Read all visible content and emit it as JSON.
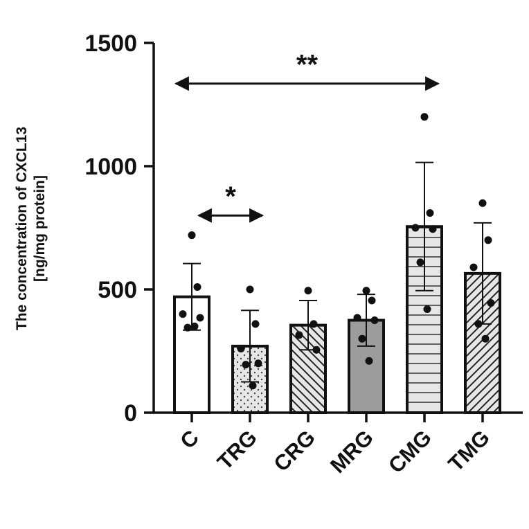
{
  "chart_data": {
    "type": "bar",
    "title": "",
    "xlabel": "",
    "ylabel_lines": [
      "The concentration of CXCL13",
      "[ng/mg protein]"
    ],
    "ylim": [
      0,
      1500
    ],
    "yticks": [
      0,
      500,
      1000,
      1500
    ],
    "ytick_labels": [
      "0",
      "500",
      "1000",
      "1500"
    ],
    "grid": false,
    "categories": [
      "C",
      "TRG",
      "CRG",
      "MRG",
      "CMG",
      "TMG"
    ],
    "means": [
      470,
      270,
      355,
      375,
      755,
      565
    ],
    "error_sd": [
      135,
      145,
      100,
      105,
      260,
      205
    ],
    "points": [
      [
        720,
        510,
        400,
        385,
        345,
        350
      ],
      [
        500,
        360,
        260,
        200,
        195,
        110
      ],
      [
        495,
        360,
        315,
        255
      ],
      [
        495,
        455,
        385,
        375,
        300,
        210
      ],
      [
        1200,
        810,
        750,
        745,
        610,
        420
      ],
      [
        850,
        700,
        590,
        445,
        360,
        300
      ]
    ],
    "fills": [
      {
        "pattern": "none",
        "color": "#ffffff"
      },
      {
        "pattern": "dots",
        "color": "#e6e6e6"
      },
      {
        "pattern": "diag-back",
        "color": "#e6e6e6"
      },
      {
        "pattern": "solid",
        "color": "#9c9c9c"
      },
      {
        "pattern": "horizontal",
        "color": "#e6e6e6"
      },
      {
        "pattern": "diag-fwd",
        "color": "#e6e6e6"
      }
    ],
    "significance": [
      {
        "from": "C",
        "to": "TRG",
        "label": "*",
        "y": 800
      },
      {
        "from": "C",
        "to": "CMG",
        "label": "**",
        "y": 1335
      }
    ]
  }
}
